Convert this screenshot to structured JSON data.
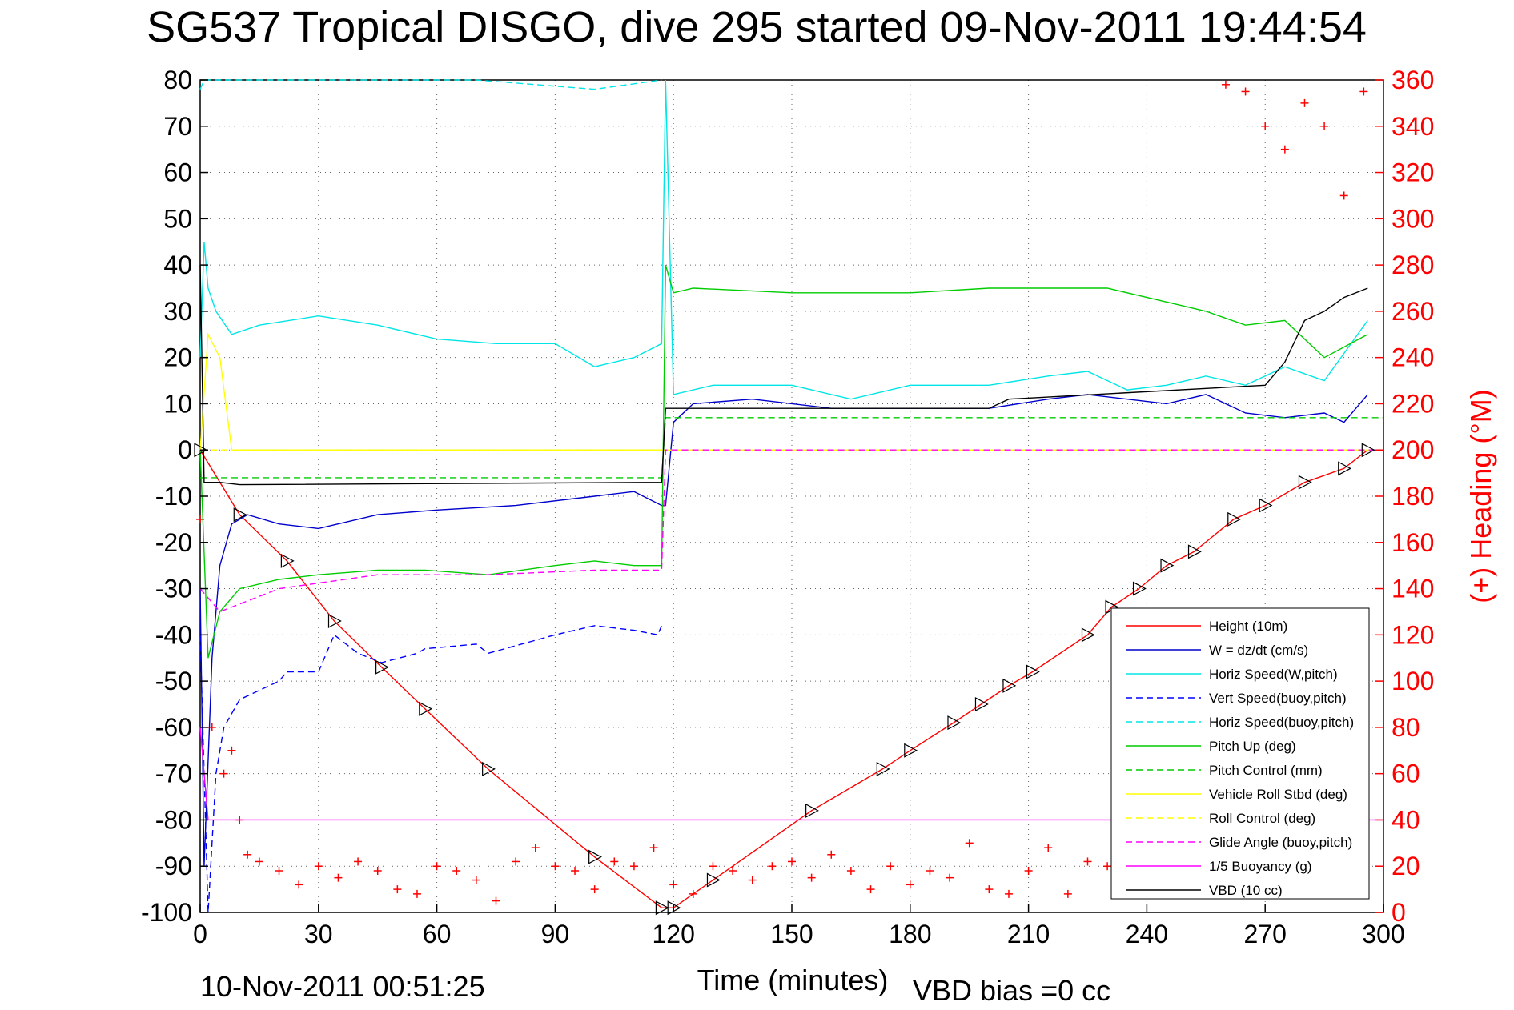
{
  "chart_data": {
    "type": "line",
    "title": "SG537 Tropical DISGO, dive 295 started 09-Nov-2011 19:44:54",
    "xlabel": "Time (minutes)",
    "ylabel_right": "(+) Heading (°M)",
    "xlim": [
      0,
      300
    ],
    "ylim_left": [
      -100,
      80
    ],
    "ylim_right": [
      0,
      360
    ],
    "x_ticks": [
      "0",
      "30",
      "60",
      "90",
      "120",
      "150",
      "180",
      "210",
      "240",
      "270",
      "300"
    ],
    "y_ticks_left": [
      "80",
      "70",
      "60",
      "50",
      "40",
      "30",
      "20",
      "10",
      "0",
      "-10",
      "-20",
      "-30",
      "-40",
      "-50",
      "-60",
      "-70",
      "-80",
      "-90",
      "-100"
    ],
    "y_ticks_right": [
      "360",
      "340",
      "320",
      "300",
      "280",
      "260",
      "240",
      "220",
      "200",
      "180",
      "160",
      "140",
      "120",
      "100",
      "80",
      "60",
      "40",
      "20",
      "0"
    ],
    "grid": true,
    "legend_position": "lower-right",
    "footer_left": "10-Nov-2011 00:51:25",
    "footer_right": "VBD bias =0 cc",
    "series": [
      {
        "name": "Height (10m)",
        "color": "#ff0000",
        "style": "solid",
        "x": [
          0,
          10,
          22,
          34,
          46,
          57,
          73,
          100,
          117,
          120,
          130,
          155,
          173,
          180,
          191,
          198,
          205,
          211,
          225,
          231,
          238,
          245,
          252,
          262,
          270,
          280,
          290,
          296
        ],
        "y": [
          0,
          -14,
          -24,
          -37,
          -47,
          -56,
          -69,
          -88,
          -99,
          -99,
          -93,
          -78,
          -69,
          -65,
          -59,
          -55,
          -51,
          -48,
          -40,
          -34,
          -30,
          -25,
          -22,
          -15,
          -12,
          -7,
          -4,
          0
        ]
      },
      {
        "name": "W = dz/dt (cm/s)",
        "color": "#0000cc",
        "style": "solid",
        "x": [
          0,
          1,
          3,
          5,
          8,
          12,
          20,
          30,
          45,
          60,
          80,
          100,
          110,
          117,
          118,
          120,
          125,
          140,
          160,
          180,
          200,
          215,
          225,
          235,
          245,
          255,
          265,
          275,
          285,
          290,
          296
        ],
        "y": [
          -30,
          -90,
          -45,
          -25,
          -16,
          -14,
          -16,
          -17,
          -14,
          -13,
          -12,
          -10,
          -9,
          -12,
          -12,
          6,
          10,
          11,
          9,
          9,
          9,
          11,
          12,
          11,
          10,
          12,
          8,
          7,
          8,
          6,
          12
        ]
      },
      {
        "name": "Horiz Speed(W,pitch)",
        "color": "#00e5e5",
        "style": "solid",
        "x": [
          0,
          1,
          2,
          4,
          8,
          15,
          30,
          45,
          60,
          75,
          90,
          100,
          110,
          117,
          118,
          120,
          130,
          150,
          165,
          180,
          200,
          215,
          225,
          235,
          245,
          255,
          265,
          275,
          285,
          296
        ],
        "y": [
          20,
          45,
          35,
          30,
          25,
          27,
          29,
          27,
          24,
          23,
          23,
          18,
          20,
          23,
          80,
          12,
          14,
          14,
          11,
          14,
          14,
          16,
          17,
          13,
          14,
          16,
          14,
          18,
          15,
          28
        ]
      },
      {
        "name": "Vert Speed(buoy,pitch)",
        "color": "#0000ff",
        "style": "dashed",
        "x": [
          0,
          2,
          4,
          6,
          10,
          20,
          22,
          30,
          34,
          40,
          46,
          55,
          57,
          70,
          73,
          90,
          100,
          110,
          116,
          117
        ],
        "y": [
          -40,
          -100,
          -70,
          -60,
          -54,
          -50,
          -48,
          -48,
          -40,
          -44,
          -46,
          -44,
          -43,
          -42,
          -44,
          -40,
          -38,
          -39,
          -40,
          -38
        ]
      },
      {
        "name": "Horiz Speed(buoy,pitch)",
        "color": "#00e5e5",
        "style": "dashed",
        "x": [
          0,
          1,
          45,
          57,
          70,
          100,
          117
        ],
        "y": [
          78,
          80,
          80,
          80,
          80,
          78,
          80
        ]
      },
      {
        "name": "Pitch Up (deg)",
        "color": "#00cc00",
        "style": "solid",
        "x": [
          0,
          2,
          5,
          10,
          20,
          30,
          45,
          57,
          73,
          90,
          100,
          110,
          117,
          118,
          120,
          125,
          150,
          180,
          200,
          230,
          245,
          255,
          265,
          275,
          285,
          296
        ],
        "y": [
          0,
          -45,
          -35,
          -30,
          -28,
          -27,
          -26,
          -26,
          -27,
          -25,
          -24,
          -25,
          -25,
          40,
          34,
          35,
          34,
          34,
          35,
          35,
          32,
          30,
          27,
          28,
          20,
          25
        ]
      },
      {
        "name": "Pitch Control (mm)",
        "color": "#00cc00",
        "style": "dashed",
        "x": [
          0,
          1,
          117,
          118,
          300
        ],
        "y": [
          -6,
          -6,
          -6,
          7,
          7
        ]
      },
      {
        "name": "Vehicle Roll Stbd (deg)",
        "color": "#ffff00",
        "style": "solid",
        "x": [
          0,
          2,
          5,
          8,
          12,
          117,
          118,
          300
        ],
        "y": [
          0,
          25,
          20,
          0,
          0,
          0,
          0,
          0
        ]
      },
      {
        "name": "Roll Control (deg)",
        "color": "#ffff00",
        "style": "dashed",
        "x": [
          0,
          117,
          118,
          300
        ],
        "y": [
          0,
          0,
          0,
          0
        ]
      },
      {
        "name": "Glide Angle (buoy,pitch)",
        "color": "#ff00ff",
        "style": "dashed",
        "x": [
          0,
          5,
          20,
          45,
          73,
          100,
          117,
          118,
          300
        ],
        "y": [
          -30,
          -35,
          -30,
          -27,
          -27,
          -26,
          -26,
          0,
          0
        ]
      },
      {
        "name": "1/5 Buoyancy (g)",
        "color": "#ff00ff",
        "style": "solid",
        "x": [
          0,
          2,
          300
        ],
        "y": [
          -60,
          -80,
          -80
        ]
      },
      {
        "name": "VBD (10 cc)",
        "color": "#000000",
        "style": "solid",
        "x": [
          0,
          1,
          5,
          10,
          117,
          118,
          120,
          200,
          205,
          270,
          275,
          280,
          285,
          290,
          296
        ],
        "y": [
          40,
          -7,
          -7,
          -7.5,
          -7,
          9,
          9,
          9,
          11,
          14,
          19,
          28,
          30,
          33,
          35
        ]
      }
    ],
    "heading_samples": {
      "name": "Heading",
      "color": "#ff0000",
      "axis": "right",
      "x": [
        0,
        3,
        6,
        8,
        10,
        12,
        15,
        20,
        25,
        30,
        35,
        40,
        45,
        50,
        55,
        60,
        65,
        70,
        75,
        80,
        85,
        90,
        95,
        100,
        105,
        110,
        115,
        120,
        125,
        130,
        135,
        140,
        145,
        150,
        155,
        160,
        165,
        170,
        175,
        180,
        185,
        190,
        195,
        200,
        205,
        210,
        215,
        220,
        225,
        230,
        235,
        240,
        245,
        250,
        255,
        260,
        265,
        270,
        275,
        280,
        285,
        290,
        295
      ],
      "y": [
        170,
        80,
        60,
        70,
        40,
        25,
        22,
        18,
        12,
        20,
        15,
        22,
        18,
        10,
        8,
        20,
        18,
        14,
        5,
        22,
        28,
        20,
        18,
        10,
        22,
        20,
        28,
        12,
        8,
        20,
        18,
        14,
        20,
        22,
        15,
        25,
        18,
        10,
        20,
        12,
        18,
        15,
        30,
        10,
        8,
        18,
        28,
        8,
        22,
        20,
        12,
        30,
        20,
        18,
        25,
        358,
        355,
        340,
        330,
        350,
        340,
        310,
        355
      ]
    }
  }
}
